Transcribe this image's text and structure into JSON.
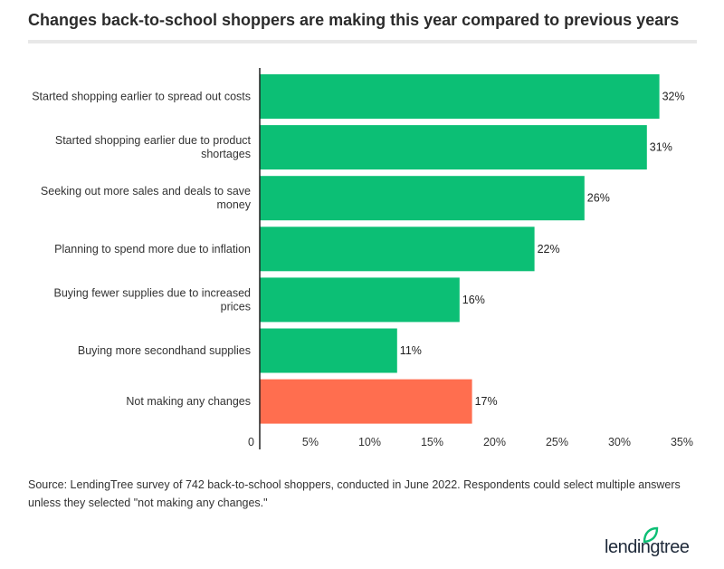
{
  "title": "Changes back-to-school shoppers are making this year compared to previous years",
  "source": "Source: LendingTree survey of 742 back-to-school shoppers, conducted in June 2022. Respondents could select multiple answers unless they selected \"not making any changes.\"",
  "logo": {
    "text": "lendingtree",
    "icon": "leaf-icon",
    "color": "#0cbf75"
  },
  "chart_data": {
    "type": "bar",
    "orientation": "horizontal",
    "title": "Changes back-to-school shoppers are making this year compared to previous years",
    "categories": [
      [
        "Started shopping earlier to spread out costs"
      ],
      [
        "Started shopping earlier due to product",
        "shortages"
      ],
      [
        "Seeking out more sales and deals to save",
        "money"
      ],
      [
        "Planning to spend more due to inflation"
      ],
      [
        "Buying fewer supplies due to increased",
        "prices"
      ],
      [
        "Buying more secondhand supplies"
      ],
      [
        "Not making any changes"
      ]
    ],
    "values": [
      32,
      31,
      26,
      22,
      16,
      11,
      17
    ],
    "data_labels": [
      "32%",
      "31%",
      "26%",
      "22%",
      "16%",
      "11%",
      "17%"
    ],
    "colors": [
      "#0cbf75",
      "#0cbf75",
      "#0cbf75",
      "#0cbf75",
      "#0cbf75",
      "#0cbf75",
      "#ff6e4f"
    ],
    "xlim": [
      0,
      35
    ],
    "xticks": [
      0,
      5,
      10,
      15,
      20,
      25,
      30,
      35
    ],
    "xtick_labels": [
      "0",
      "5%",
      "10%",
      "15%",
      "20%",
      "25%",
      "30%",
      "35%"
    ],
    "grid": false,
    "legend": "none"
  }
}
